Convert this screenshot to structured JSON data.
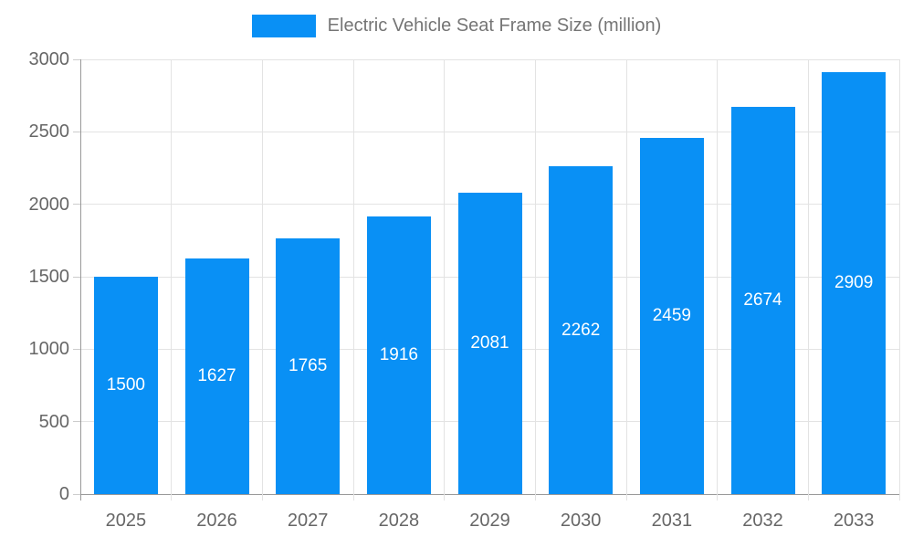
{
  "chart_data": {
    "type": "bar",
    "title": "Electric Vehicle Seat Frame Size (million)",
    "legend": {
      "position": "top",
      "entries": [
        "Electric Vehicle Seat Frame Size (million)"
      ]
    },
    "categories": [
      "2025",
      "2026",
      "2027",
      "2028",
      "2029",
      "2030",
      "2031",
      "2032",
      "2033"
    ],
    "series": [
      {
        "name": "Electric Vehicle Seat Frame Size (million)",
        "values": [
          1500,
          1627,
          1765,
          1916,
          2081,
          2262,
          2459,
          2674,
          2909
        ]
      }
    ],
    "xlabel": "",
    "ylabel": "",
    "ylim": [
      0,
      3000
    ],
    "yticks": [
      0,
      500,
      1000,
      1500,
      2000,
      2500,
      3000
    ],
    "grid": true,
    "colors": {
      "bar": "#0990F5",
      "bar_value_text": "#ffffff",
      "grid_line": "#e3e3e3",
      "axis_line": "#999999",
      "tick_mark": "#cccccc",
      "axis_text": "#666666",
      "legend_text": "#757575"
    }
  }
}
